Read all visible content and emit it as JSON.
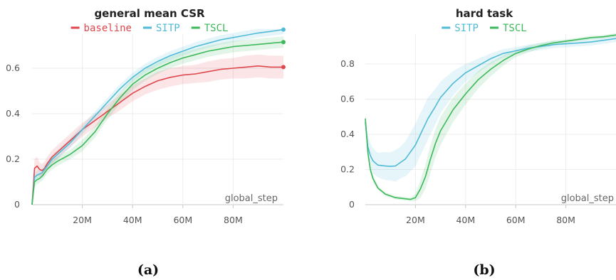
{
  "chart_data": [
    {
      "id": "a",
      "type": "line",
      "title": "general mean CSR",
      "caption": "(a)",
      "xlabel": "global_step",
      "ylabel": "",
      "xlim": [
        0,
        100
      ],
      "ylim": [
        0,
        0.75
      ],
      "x_ticks": [
        {
          "value": 20,
          "label": "20M"
        },
        {
          "value": 40,
          "label": "40M"
        },
        {
          "value": 60,
          "label": "60M"
        },
        {
          "value": 80,
          "label": "80M"
        }
      ],
      "y_ticks": [
        {
          "value": 0,
          "label": "0"
        },
        {
          "value": 0.2,
          "label": "0.2"
        },
        {
          "value": 0.4,
          "label": "0.4"
        },
        {
          "value": 0.6,
          "label": "0.6"
        }
      ],
      "grid": true,
      "legend": "top-center",
      "series": [
        {
          "name": "baseline",
          "color": "#e0474c",
          "end_marker": true,
          "x": [
            0,
            1,
            2,
            3,
            4,
            5,
            6,
            8,
            10,
            15,
            20,
            25,
            30,
            35,
            40,
            45,
            50,
            55,
            60,
            65,
            70,
            75,
            80,
            85,
            90,
            95,
            100
          ],
          "y": [
            0.0,
            0.16,
            0.17,
            0.155,
            0.15,
            0.16,
            0.18,
            0.21,
            0.23,
            0.28,
            0.33,
            0.37,
            0.41,
            0.45,
            0.49,
            0.52,
            0.545,
            0.56,
            0.57,
            0.575,
            0.585,
            0.595,
            0.6,
            0.605,
            0.61,
            0.605,
            0.605
          ],
          "band": [
            0.0,
            0.04,
            0.04,
            0.03,
            0.03,
            0.03,
            0.03,
            0.03,
            0.03,
            0.03,
            0.03,
            0.03,
            0.03,
            0.035,
            0.035,
            0.035,
            0.04,
            0.04,
            0.04,
            0.04,
            0.045,
            0.045,
            0.045,
            0.05,
            0.05,
            0.05,
            0.05
          ]
        },
        {
          "name": "SITP",
          "color": "#4fbbd6",
          "end_marker": true,
          "x": [
            0,
            1,
            2,
            3,
            4,
            5,
            6,
            8,
            10,
            15,
            20,
            25,
            30,
            35,
            40,
            45,
            50,
            55,
            60,
            65,
            70,
            75,
            80,
            85,
            90,
            95,
            100
          ],
          "y": [
            0.0,
            0.12,
            0.13,
            0.135,
            0.14,
            0.155,
            0.17,
            0.2,
            0.22,
            0.27,
            0.33,
            0.39,
            0.45,
            0.51,
            0.56,
            0.6,
            0.63,
            0.655,
            0.675,
            0.695,
            0.71,
            0.725,
            0.735,
            0.745,
            0.755,
            0.762,
            0.77
          ],
          "band": [
            0.0,
            0.02,
            0.02,
            0.02,
            0.02,
            0.02,
            0.02,
            0.02,
            0.02,
            0.02,
            0.02,
            0.02,
            0.02,
            0.02,
            0.02,
            0.02,
            0.02,
            0.02,
            0.02,
            0.02,
            0.02,
            0.02,
            0.02,
            0.02,
            0.02,
            0.02,
            0.02
          ]
        },
        {
          "name": "TSCL",
          "color": "#3cb95a",
          "end_marker": true,
          "x": [
            0,
            1,
            2,
            3,
            4,
            5,
            6,
            8,
            10,
            15,
            20,
            25,
            30,
            35,
            40,
            45,
            50,
            55,
            60,
            65,
            70,
            75,
            80,
            85,
            90,
            95,
            100
          ],
          "y": [
            0.0,
            0.1,
            0.11,
            0.115,
            0.125,
            0.14,
            0.155,
            0.175,
            0.19,
            0.22,
            0.26,
            0.32,
            0.4,
            0.47,
            0.53,
            0.57,
            0.6,
            0.625,
            0.645,
            0.66,
            0.675,
            0.685,
            0.695,
            0.7,
            0.705,
            0.71,
            0.715
          ],
          "band": [
            0.0,
            0.02,
            0.02,
            0.02,
            0.02,
            0.02,
            0.02,
            0.02,
            0.02,
            0.02,
            0.025,
            0.025,
            0.025,
            0.025,
            0.025,
            0.025,
            0.025,
            0.025,
            0.025,
            0.025,
            0.025,
            0.025,
            0.025,
            0.025,
            0.025,
            0.025,
            0.025
          ]
        }
      ]
    },
    {
      "id": "b",
      "type": "line",
      "title": "hard task",
      "caption": "(b)",
      "xlabel": "global_step",
      "ylabel": "",
      "xlim": [
        0,
        100
      ],
      "ylim": [
        0,
        0.97
      ],
      "x_ticks": [
        {
          "value": 20,
          "label": "20M"
        },
        {
          "value": 40,
          "label": "40M"
        },
        {
          "value": 60,
          "label": "60M"
        },
        {
          "value": 80,
          "label": "80M"
        }
      ],
      "y_ticks": [
        {
          "value": 0,
          "label": "0"
        },
        {
          "value": 0.2,
          "label": "0.2"
        },
        {
          "value": 0.4,
          "label": "0.4"
        },
        {
          "value": 0.6,
          "label": "0.6"
        },
        {
          "value": 0.8,
          "label": "0.8"
        }
      ],
      "grid": true,
      "legend": "top-center",
      "series": [
        {
          "name": "SITP",
          "color": "#4fbbd6",
          "end_marker": false,
          "x": [
            0,
            1,
            2,
            3,
            5,
            8,
            10,
            12,
            14,
            16,
            18,
            20,
            22,
            25,
            28,
            30,
            35,
            40,
            45,
            50,
            55,
            60,
            65,
            70,
            75,
            80,
            85,
            90,
            95,
            100
          ],
          "y": [
            0.47,
            0.33,
            0.28,
            0.25,
            0.225,
            0.22,
            0.218,
            0.22,
            0.24,
            0.26,
            0.3,
            0.34,
            0.4,
            0.49,
            0.56,
            0.61,
            0.69,
            0.75,
            0.79,
            0.83,
            0.86,
            0.875,
            0.89,
            0.9,
            0.91,
            0.915,
            0.92,
            0.925,
            0.935,
            0.945
          ],
          "band": [
            0.04,
            0.07,
            0.07,
            0.07,
            0.07,
            0.08,
            0.08,
            0.09,
            0.09,
            0.1,
            0.11,
            0.12,
            0.12,
            0.12,
            0.1,
            0.09,
            0.07,
            0.05,
            0.04,
            0.03,
            0.025,
            0.02,
            0.02,
            0.02,
            0.02,
            0.02,
            0.02,
            0.02,
            0.02,
            0.02
          ]
        },
        {
          "name": "TSCL",
          "color": "#3cb95a",
          "end_marker": false,
          "x": [
            0,
            1,
            2,
            3,
            5,
            8,
            10,
            12,
            15,
            18,
            20,
            22,
            24,
            26,
            28,
            30,
            35,
            40,
            45,
            50,
            55,
            60,
            65,
            70,
            75,
            80,
            85,
            90,
            95,
            100
          ],
          "y": [
            0.49,
            0.3,
            0.2,
            0.15,
            0.095,
            0.06,
            0.05,
            0.04,
            0.035,
            0.03,
            0.04,
            0.09,
            0.16,
            0.26,
            0.35,
            0.42,
            0.54,
            0.63,
            0.71,
            0.77,
            0.82,
            0.86,
            0.885,
            0.905,
            0.92,
            0.93,
            0.94,
            0.95,
            0.955,
            0.965
          ],
          "band": [
            0.03,
            0.03,
            0.02,
            0.02,
            0.01,
            0.01,
            0.01,
            0.01,
            0.01,
            0.01,
            0.02,
            0.05,
            0.07,
            0.08,
            0.08,
            0.08,
            0.07,
            0.06,
            0.05,
            0.04,
            0.03,
            0.02,
            0.02,
            0.015,
            0.015,
            0.01,
            0.01,
            0.01,
            0.01,
            0.01
          ]
        }
      ]
    }
  ]
}
